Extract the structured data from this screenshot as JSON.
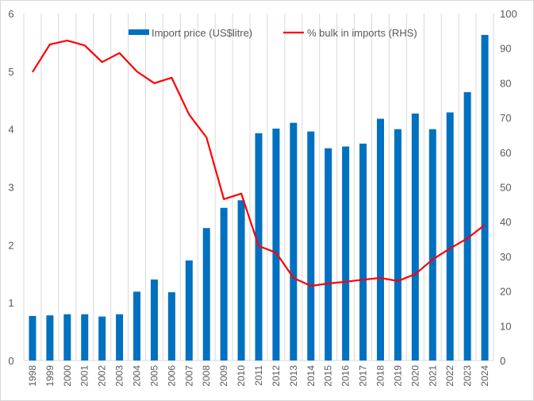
{
  "chart_data": {
    "type": "bar+line",
    "title": "",
    "categories": [
      "1998",
      "1999",
      "2000",
      "2001",
      "2002",
      "2003",
      "2004",
      "2005",
      "2006",
      "2007",
      "2008",
      "2009",
      "2010",
      "2011",
      "2012",
      "2013",
      "2014",
      "2015",
      "2016",
      "2017",
      "2018",
      "2019",
      "2020",
      "2021",
      "2022",
      "2023",
      "2024"
    ],
    "series": [
      {
        "name": "Import price (US$litre)",
        "type": "bar",
        "axis": "left",
        "color": "#0070c0",
        "values": [
          0.77,
          0.78,
          0.8,
          0.8,
          0.76,
          0.8,
          1.19,
          1.4,
          1.18,
          1.73,
          2.29,
          2.64,
          2.77,
          3.93,
          4.01,
          4.11,
          3.96,
          3.67,
          3.7,
          3.75,
          4.18,
          4.0,
          4.27,
          4.0,
          4.29,
          4.64,
          5.63
        ]
      },
      {
        "name": "% bulk in imports (RHS)",
        "type": "line",
        "axis": "right",
        "color": "#ff0000",
        "values": [
          83.1,
          91.1,
          92.2,
          90.8,
          86.0,
          88.6,
          83.3,
          79.9,
          81.5,
          70.9,
          64.3,
          46.5,
          48.1,
          33.0,
          31.1,
          23.8,
          21.5,
          22.2,
          22.7,
          23.3,
          23.8,
          22.9,
          24.9,
          29.1,
          32.3,
          35.2,
          39.1
        ]
      }
    ],
    "ylim_left": [
      0,
      6
    ],
    "yticks_left": [
      "0",
      "1",
      "2",
      "3",
      "4",
      "5",
      "6"
    ],
    "ylim_right": [
      0,
      100
    ],
    "yticks_right": [
      "0",
      "10",
      "20",
      "30",
      "40",
      "50",
      "60",
      "70",
      "80",
      "90",
      "100"
    ],
    "xlabel": "",
    "ylabel": "",
    "grid": "vertical",
    "legend": "top-center"
  }
}
